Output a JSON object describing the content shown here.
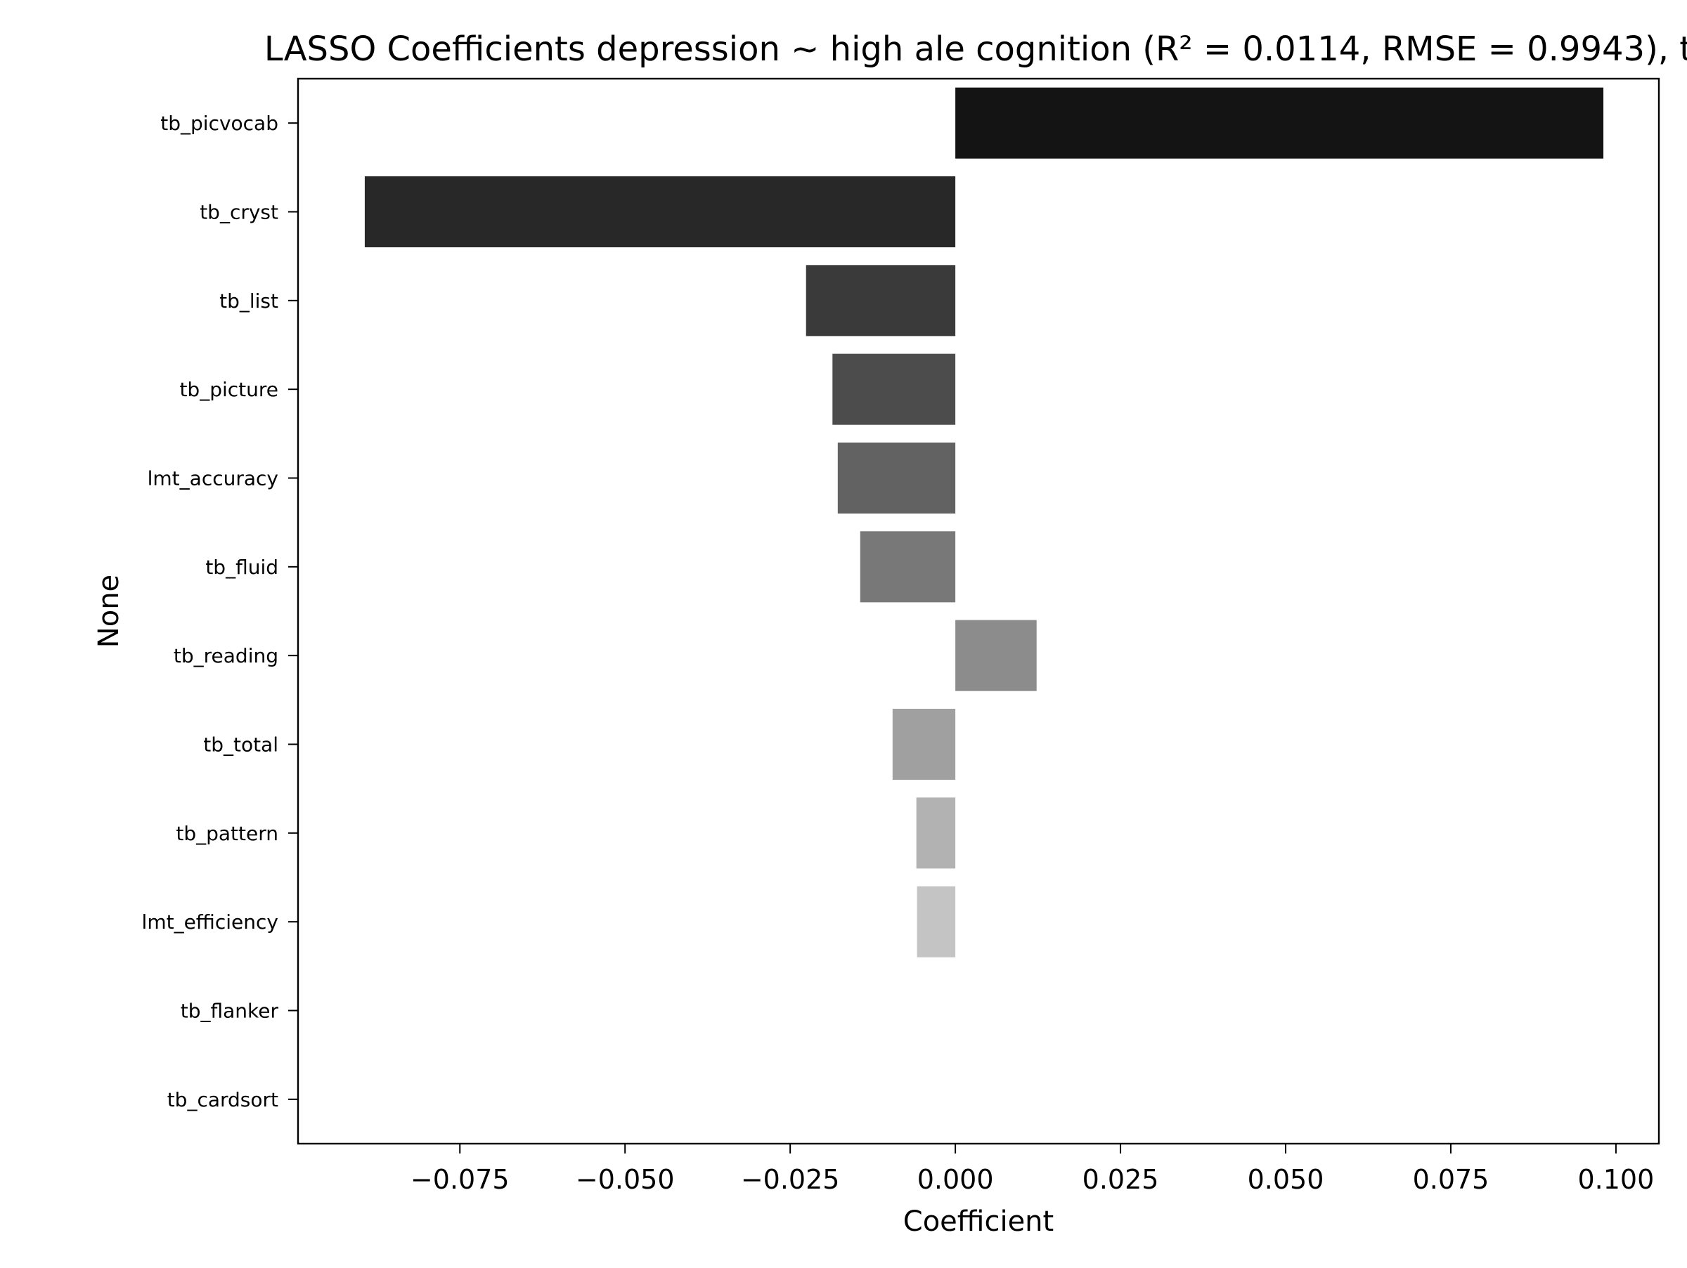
{
  "chart_data": {
    "type": "bar",
    "orientation": "horizontal",
    "title": "LASSO Coefficients depression ~ high ale cognition (R² = 0.0114, RMSE = 0.9943), t",
    "xlabel": "Coefficient",
    "ylabel": "None",
    "categories": [
      "tb_picvocab",
      "tb_cryst",
      "tb_list",
      "tb_picture",
      "lmt_accuracy",
      "tb_fluid",
      "tb_reading",
      "tb_total",
      "tb_pattern",
      "lmt_efficiency",
      "tb_flanker",
      "tb_cardsort"
    ],
    "values": [
      0.0981,
      -0.0894,
      -0.0226,
      -0.0186,
      -0.0178,
      -0.0144,
      0.0123,
      -0.0095,
      -0.0059,
      -0.0058,
      0.0,
      0.0
    ],
    "bar_colors": [
      "#141414",
      "#282828",
      "#3a3a3a",
      "#4c4c4c",
      "#626262",
      "#787878",
      "#8c8c8c",
      "#a0a0a0",
      "#b2b2b2",
      "#c4c4c4",
      "#d6d6d6",
      "#e8e8e8"
    ],
    "xlim": [
      -0.0995,
      0.1065
    ],
    "xticks": [
      -0.075,
      -0.05,
      -0.025,
      0.0,
      0.025,
      0.05,
      0.075,
      0.1
    ],
    "xtick_labels": [
      "−0.075",
      "−0.050",
      "−0.025",
      "0.000",
      "0.025",
      "0.050",
      "0.075",
      "0.100"
    ],
    "grid": false,
    "legend": "none"
  }
}
